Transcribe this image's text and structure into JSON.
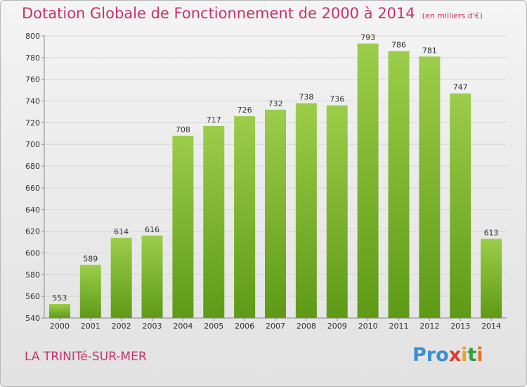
{
  "title": "Dotation Globale de Fonctionnement de 2000 à 2014",
  "unit_note": "(en milliers d'€)",
  "commune": "LA TRINITé-SUR-MER",
  "brand": {
    "letters": [
      "P",
      "r",
      "o",
      "x",
      "i",
      "t",
      "i"
    ],
    "colors": [
      "#3a8fd0",
      "#3a8fd0",
      "#3a8fd0",
      "#e03a2f",
      "#f0a020",
      "#2e9e3e",
      "#e8702a"
    ]
  },
  "colors": {
    "title": "#c8316b",
    "bar_top": "#9ccd4a",
    "bar_bottom": "#5e9a16"
  },
  "chart_data": {
    "type": "bar",
    "title": "Dotation Globale de Fonctionnement de 2000 à 2014",
    "categories": [
      "2000",
      "2001",
      "2002",
      "2003",
      "2004",
      "2005",
      "2006",
      "2007",
      "2008",
      "2009",
      "2010",
      "2011",
      "2012",
      "2013",
      "2014"
    ],
    "values": [
      553,
      589,
      614,
      616,
      708,
      717,
      726,
      732,
      738,
      736,
      793,
      786,
      781,
      747,
      613
    ],
    "ylim": [
      540,
      800
    ],
    "yticks": [
      540,
      560,
      580,
      600,
      620,
      640,
      660,
      680,
      700,
      720,
      740,
      760,
      780,
      800
    ],
    "grid": true,
    "data_labels": true
  }
}
